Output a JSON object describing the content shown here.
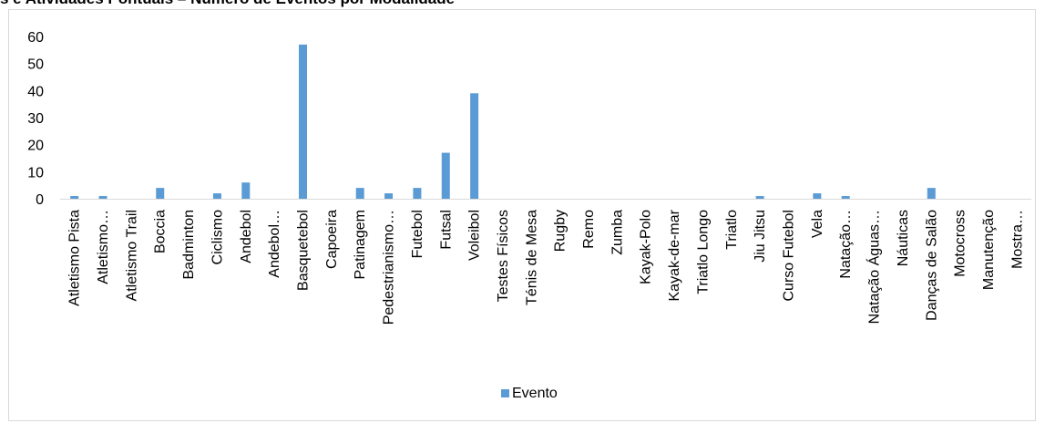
{
  "chart_data": {
    "type": "bar",
    "title": "s e Atividades Pontuais – Número de Eventos por Modalidade",
    "xlabel": "",
    "ylabel": "",
    "ylim": [
      0,
      60
    ],
    "yticks": [
      0,
      10,
      20,
      30,
      40,
      50,
      60
    ],
    "grid": false,
    "legend_position": "bottom",
    "series_color": "#5B9BD5",
    "categories": [
      "Atletismo Pista",
      "Atletismo…",
      "Atletismo Trail",
      "Boccia",
      "Badminton",
      "Ciclismo",
      "Andebol",
      "Andebol…",
      "Basquetebol",
      "Capoeira",
      "Patinagem",
      "Pedestrianismo…",
      "Futebol",
      "Futsal",
      "Voleibol",
      "Testes Físicos",
      "Ténis de Mesa",
      "Rugby",
      "Remo",
      "Zumba",
      "Kayak-Polo",
      "Kayak-de-mar",
      "Triatlo Longo",
      "Triatlo",
      "Jiu Jitsu",
      "Curso Futebol",
      "Vela",
      "Natação…",
      "Natação Águas…",
      "Náuticas",
      "Danças de Salão",
      "Motocross",
      "Manutenção",
      "Mostra…"
    ],
    "series": [
      {
        "name": "Evento",
        "values": [
          1,
          1,
          0,
          4,
          0,
          2,
          6,
          0,
          57,
          0,
          4,
          2,
          4,
          17,
          39,
          0,
          0,
          0,
          0,
          0,
          0,
          0,
          0,
          0,
          1,
          0,
          2,
          1,
          0,
          0,
          4,
          0,
          0,
          0
        ]
      }
    ]
  }
}
